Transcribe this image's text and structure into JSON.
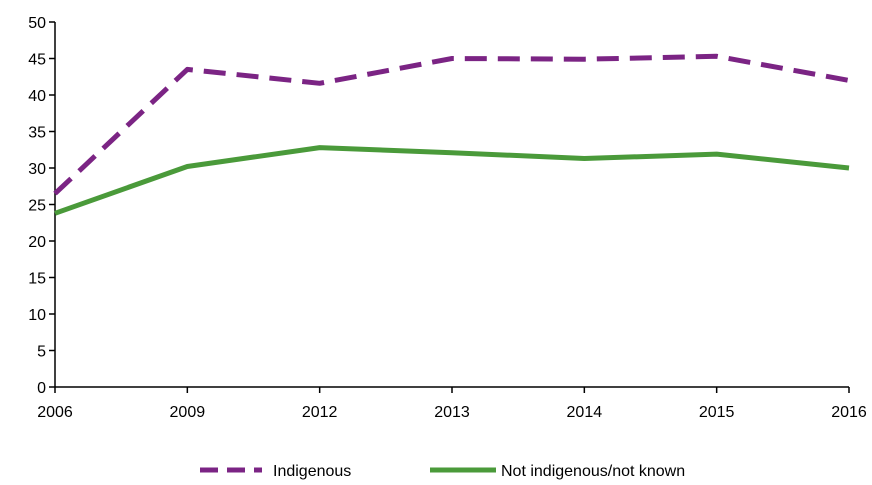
{
  "chart_data": {
    "type": "line",
    "title": "",
    "xlabel": "",
    "ylabel": "",
    "categories": [
      "2006",
      "2009",
      "2012",
      "2013",
      "2014",
      "2015",
      "2016"
    ],
    "ylim": [
      0,
      50
    ],
    "yticks": [
      0,
      5,
      10,
      15,
      20,
      25,
      30,
      35,
      40,
      45,
      50
    ],
    "grid": false,
    "legend_position": "bottom",
    "series": [
      {
        "name": "Indigenous",
        "values": [
          26.5,
          43.5,
          41.6,
          45.0,
          44.9,
          45.3,
          42.0
        ],
        "color": "#7B2484",
        "style": "dashed"
      },
      {
        "name": "Not indigenous/not known",
        "values": [
          23.8,
          30.2,
          32.8,
          32.1,
          31.3,
          31.9,
          30.0
        ],
        "color": "#4A9A3A",
        "style": "solid"
      }
    ]
  }
}
